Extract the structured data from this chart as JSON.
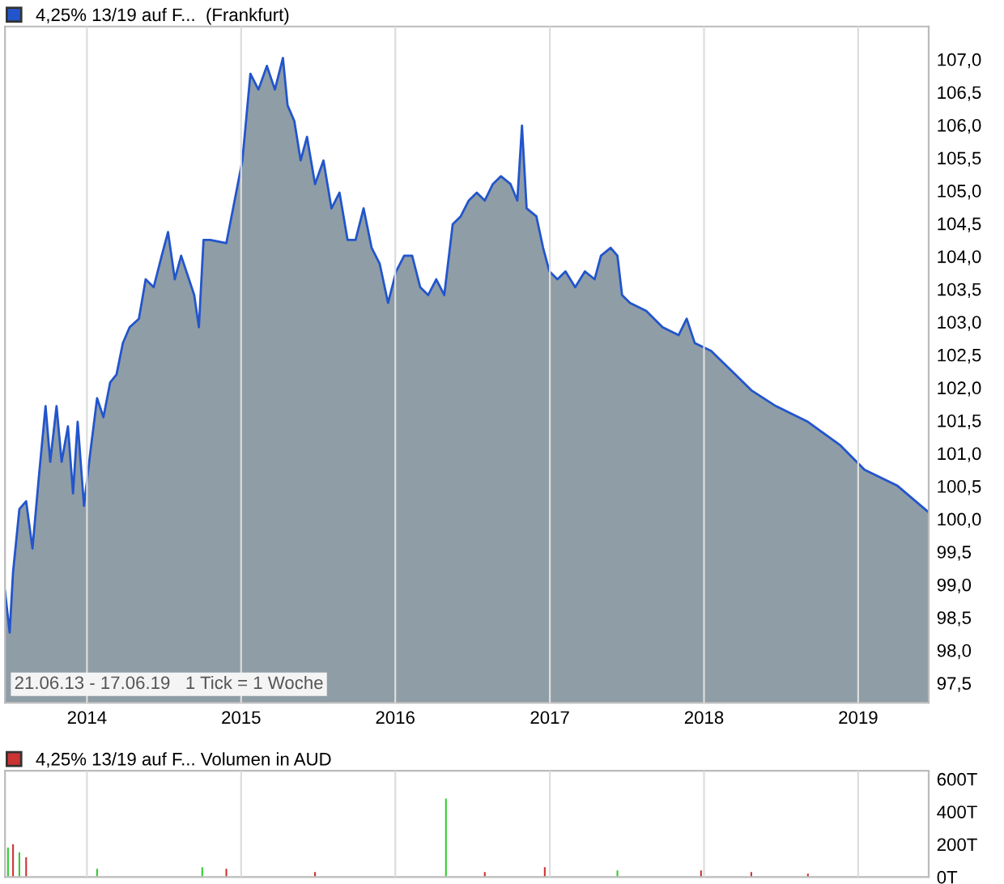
{
  "chart_data": [
    {
      "type": "area",
      "legend": "top left",
      "grid": "x",
      "annotations": [
        "21.06.13 - 17.06.19   1 Tick = 1 Woche"
      ],
      "x": [
        "2013-06-21",
        "2013-07-02",
        "2013-07-10",
        "2013-07-25",
        "2013-08-10",
        "2013-08-25",
        "2013-09-09",
        "2013-09-25",
        "2013-10-06",
        "2013-10-21",
        "2013-11-02",
        "2013-11-17",
        "2013-11-29",
        "2013-12-10",
        "2013-12-25",
        "2014-01-10",
        "2014-01-25",
        "2014-02-09",
        "2014-02-25",
        "2014-03-12",
        "2014-03-27",
        "2014-04-12",
        "2014-05-04",
        "2014-05-20",
        "2014-06-08",
        "2014-06-27",
        "2014-07-12",
        "2014-07-28",
        "2014-08-12",
        "2014-08-27",
        "2014-09-12",
        "2014-09-23",
        "2014-10-04",
        "2014-10-20",
        "2014-11-27",
        "2015-01-04",
        "2015-01-23",
        "2015-02-11",
        "2015-03-03",
        "2015-03-22",
        "2015-04-10",
        "2015-04-21",
        "2015-05-07",
        "2015-05-22",
        "2015-06-06",
        "2015-06-25",
        "2015-07-15",
        "2015-08-03",
        "2015-08-22",
        "2015-09-10",
        "2015-09-29",
        "2015-10-18",
        "2015-11-06",
        "2015-11-25",
        "2015-12-15",
        "2016-01-03",
        "2016-01-22",
        "2016-02-10",
        "2016-02-29",
        "2016-03-19",
        "2016-04-07",
        "2016-04-26",
        "2016-05-16",
        "2016-06-04",
        "2016-06-23",
        "2016-07-12",
        "2016-07-31",
        "2016-08-19",
        "2016-09-07",
        "2016-09-30",
        "2016-10-16",
        "2016-10-27",
        "2016-11-07",
        "2016-11-30",
        "2016-12-16",
        "2016-12-31",
        "2017-01-19",
        "2017-02-07",
        "2017-03-02",
        "2017-03-25",
        "2017-04-17",
        "2017-05-02",
        "2017-05-25",
        "2017-06-10",
        "2017-06-21",
        "2017-07-10",
        "2017-08-17",
        "2017-09-25",
        "2017-11-02",
        "2017-11-21",
        "2017-12-10",
        "2018-01-18",
        "2018-02-06",
        "2018-03-16",
        "2018-04-23",
        "2018-06-20",
        "2018-09-04",
        "2018-11-20",
        "2019-01-16",
        "2019-04-03",
        "2019-06-17"
      ],
      "series": [
        {
          "name": "4,25% 13/19 auf F...  (Frankfurt)",
          "color": "#2255cc",
          "values": [
            98.9,
            98.27,
            99.19,
            100.15,
            100.27,
            99.55,
            100.63,
            101.72,
            100.87,
            101.72,
            100.87,
            101.41,
            100.39,
            101.48,
            100.2,
            101.07,
            101.84,
            101.55,
            102.08,
            102.2,
            102.68,
            102.92,
            103.05,
            103.65,
            103.53,
            104.01,
            104.37,
            103.65,
            104.01,
            103.72,
            103.41,
            102.92,
            104.25,
            104.25,
            104.2,
            105.46,
            106.78,
            106.54,
            106.9,
            106.54,
            107.02,
            106.3,
            106.06,
            105.46,
            105.82,
            105.1,
            105.46,
            104.73,
            104.97,
            104.25,
            104.25,
            104.73,
            104.13,
            103.89,
            103.29,
            103.77,
            104.01,
            104.01,
            103.53,
            103.41,
            103.65,
            103.41,
            104.49,
            104.61,
            104.85,
            104.97,
            104.85,
            105.1,
            105.22,
            105.1,
            104.85,
            105.99,
            104.73,
            104.61,
            104.13,
            103.77,
            103.65,
            103.77,
            103.53,
            103.77,
            103.65,
            104.01,
            104.13,
            104.01,
            103.41,
            103.29,
            103.17,
            102.92,
            102.8,
            103.05,
            102.68,
            102.56,
            102.44,
            102.2,
            101.96,
            101.72,
            101.48,
            101.12,
            100.75,
            100.51,
            100.1
          ]
        }
      ],
      "xlim": [
        "2013-06-21",
        "2019-06-17"
      ],
      "xticks": [
        {
          "value": "2014-01-01",
          "label": "2014"
        },
        {
          "value": "2015-01-01",
          "label": "2015"
        },
        {
          "value": "2016-01-01",
          "label": "2016"
        },
        {
          "value": "2017-01-01",
          "label": "2017"
        },
        {
          "value": "2018-01-01",
          "label": "2018"
        },
        {
          "value": "2019-01-01",
          "label": "2019"
        }
      ],
      "ylim": [
        97.2,
        107.5
      ],
      "yticks": [
        {
          "value": 97.5,
          "label": "97,5"
        },
        {
          "value": 98,
          "label": "98,0"
        },
        {
          "value": 98.5,
          "label": "98,5"
        },
        {
          "value": 99,
          "label": "99,0"
        },
        {
          "value": 99.5,
          "label": "99,5"
        },
        {
          "value": 100,
          "label": "100,0"
        },
        {
          "value": 100.5,
          "label": "100,5"
        },
        {
          "value": 101,
          "label": "101,0"
        },
        {
          "value": 101.5,
          "label": "101,5"
        },
        {
          "value": 102,
          "label": "102,0"
        },
        {
          "value": 102.5,
          "label": "102,5"
        },
        {
          "value": 103,
          "label": "103,0"
        },
        {
          "value": 103.5,
          "label": "103,5"
        },
        {
          "value": 104,
          "label": "104,0"
        },
        {
          "value": 104.5,
          "label": "104,5"
        },
        {
          "value": 105,
          "label": "105,0"
        },
        {
          "value": 105.5,
          "label": "105,5"
        },
        {
          "value": 106,
          "label": "106,0"
        },
        {
          "value": 106.5,
          "label": "106,5"
        },
        {
          "value": 107,
          "label": "107,0"
        }
      ]
    },
    {
      "type": "bar",
      "legend": "top left",
      "grid": "x",
      "tick_labels": "y",
      "x": [
        "2013-06-28",
        "2013-07-10",
        "2013-07-25",
        "2013-08-10",
        "2014-01-25",
        "2014-10-01",
        "2014-11-27",
        "2015-06-25",
        "2016-04-30",
        "2016-07-31",
        "2016-12-20",
        "2017-06-10",
        "2017-12-25",
        "2018-04-23",
        "2018-09-04"
      ],
      "series": [
        {
          "name": "4,25% 13/19 auf F... Volumen in AUD",
          "color": "#cc3333",
          "values": [
            180,
            200,
            150,
            120,
            50,
            60,
            50,
            30,
            480,
            30,
            60,
            40,
            40,
            30,
            20
          ],
          "colors": [
            "#33cc33",
            "#cc3333",
            "#33cc33",
            "#cc3333",
            "#33cc33",
            "#33cc33",
            "#cc3333",
            "#cc3333",
            "#33cc33",
            "#cc3333",
            "#cc3333",
            "#33cc33",
            "#cc3333",
            "#cc3333",
            "#cc3333"
          ]
        }
      ],
      "xlim": [
        "2013-06-21",
        "2019-06-17"
      ],
      "xticks": [
        {
          "value": "2014-01-01",
          "label": null
        },
        {
          "value": "2015-01-01",
          "label": null
        },
        {
          "value": "2016-01-01",
          "label": null
        },
        {
          "value": "2017-01-01",
          "label": null
        },
        {
          "value": "2018-01-01",
          "label": null
        },
        {
          "value": "2019-01-01",
          "label": null
        }
      ],
      "ylim": [
        0,
        650
      ],
      "yticks": [
        {
          "value": 0,
          "label": "0T"
        },
        {
          "value": 200,
          "label": "200T"
        },
        {
          "value": 400,
          "label": "400T"
        },
        {
          "value": 600,
          "label": "600T"
        }
      ]
    }
  ]
}
